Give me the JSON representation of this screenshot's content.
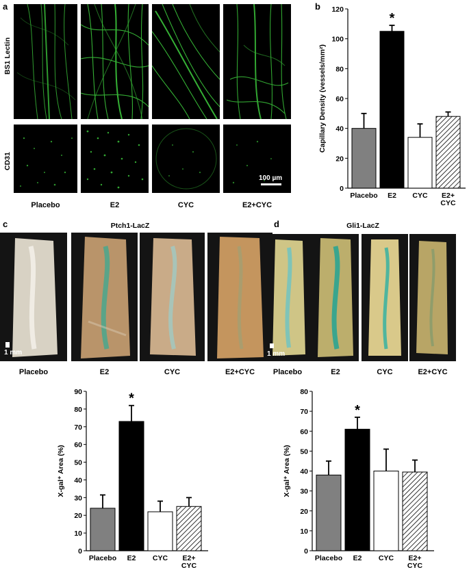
{
  "panels": {
    "a": {
      "letter": "a",
      "row_labels": [
        "BS1 Lectin",
        "CD31"
      ],
      "columns": [
        "Placebo",
        "E2",
        "CYC",
        "E2+CYC"
      ],
      "scale_bar": "100 µm"
    },
    "c": {
      "letter": "c",
      "title": "Ptch1-LacZ",
      "columns": [
        "Placebo",
        "E2",
        "CYC",
        "E2+CYC"
      ],
      "scale_bar": "1 mm"
    },
    "d": {
      "letter": "d",
      "title": "Gli1-LacZ",
      "columns": [
        "Placebo",
        "E2",
        "CYC",
        "E2+CYC"
      ],
      "scale_bar": "1 mm"
    }
  },
  "colors": {
    "placebo": "#808080",
    "e2": "#000000",
    "cyc": "#ffffff",
    "e2cyc": "hatched",
    "microscopy_green": "#3fd13f"
  },
  "chart_data": [
    {
      "id": "b",
      "letter": "b",
      "type": "bar",
      "categories": [
        "Placebo",
        "E2",
        "CYC",
        "E2+\nCYC"
      ],
      "values": [
        40,
        105,
        34,
        48
      ],
      "errors": [
        10,
        4,
        9,
        3
      ],
      "ylabel": "Capillary Density (vessels/mm²)",
      "ylim": [
        0,
        120
      ],
      "yticks": [
        0,
        20,
        40,
        60,
        80,
        100,
        120
      ],
      "significance": [
        "",
        "*",
        "",
        ""
      ]
    },
    {
      "id": "c-chart",
      "type": "bar",
      "categories": [
        "Placebo",
        "E2",
        "CYC",
        "E2+\nCYC"
      ],
      "values": [
        24,
        73,
        22,
        25
      ],
      "errors": [
        7.5,
        9,
        6,
        5
      ],
      "ylabel": "X-gal⁺ Area (%)",
      "ylim": [
        0,
        90
      ],
      "yticks": [
        0,
        10,
        20,
        30,
        40,
        50,
        60,
        70,
        80,
        90
      ],
      "significance": [
        "",
        "*",
        "",
        ""
      ]
    },
    {
      "id": "d-chart",
      "type": "bar",
      "categories": [
        "Placebo",
        "E2",
        "CYC",
        "E2+\nCYC"
      ],
      "values": [
        38,
        61,
        40,
        39.5
      ],
      "errors": [
        7,
        6,
        11,
        6
      ],
      "ylabel": "X-gal⁺ Area (%)",
      "ylim": [
        0,
        80
      ],
      "yticks": [
        0,
        10,
        20,
        30,
        40,
        50,
        60,
        70,
        80
      ],
      "significance": [
        "",
        "*",
        "",
        ""
      ]
    }
  ]
}
